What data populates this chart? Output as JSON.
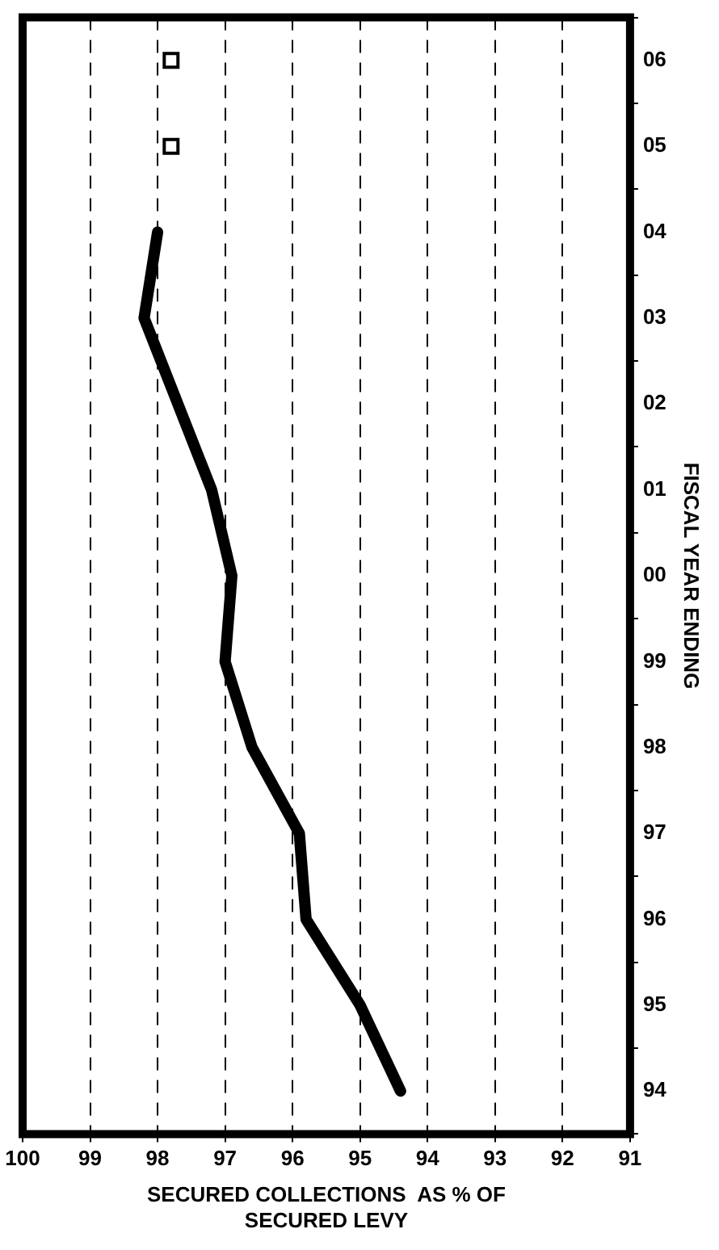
{
  "chart_data": {
    "type": "line",
    "orientation": "horizontal",
    "xlabel": "SECURED COLLECTIONS  AS % OF\nSECURED LEVY",
    "ylabel": "FISCAL YEAR ENDING",
    "categories": [
      "06",
      "05",
      "04",
      "03",
      "02",
      "01",
      "00",
      "99",
      "98",
      "97",
      "96",
      "95",
      "94"
    ],
    "series": [
      {
        "color": "#000000",
        "values": [
          null,
          null,
          98.0,
          98.2,
          97.7,
          97.2,
          96.9,
          97.0,
          96.6,
          95.9,
          95.8,
          95.0,
          94.4
        ]
      },
      {
        "type": "scatter",
        "marker": "square",
        "color": "#000000",
        "values": [
          97.8,
          97.8,
          null,
          null,
          null,
          null,
          null,
          null,
          null,
          null,
          null,
          null,
          null
        ]
      }
    ],
    "xlim": [
      100,
      91
    ],
    "xticks": [
      100,
      99,
      98,
      97,
      96,
      95,
      94,
      93,
      92,
      91
    ],
    "grid": "x",
    "legend": false
  }
}
